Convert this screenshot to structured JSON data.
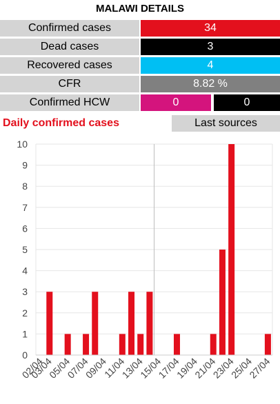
{
  "title": "MALAWI DETAILS",
  "stats": {
    "confirmed": {
      "label": "Confirmed cases",
      "value": "34"
    },
    "dead": {
      "label": "Dead cases",
      "value": "3"
    },
    "recovered": {
      "label": "Recovered cases",
      "value": "4"
    },
    "cfr": {
      "label": "CFR",
      "value": "8.82 %"
    },
    "hcw": {
      "label": "Confirmed HCW",
      "value1": "0",
      "value2": "0"
    }
  },
  "colors": {
    "confirmed": "#e3101d",
    "dead": "#000000",
    "recovered": "#00bff3",
    "cfr": "#808080",
    "hcw": "#d4147d",
    "bar": "#e3101d"
  },
  "daily_title": "Daily confirmed cases",
  "last_sources": "Last sources",
  "chart_data": {
    "type": "bar",
    "title": "Daily confirmed cases",
    "categories": [
      "02/04",
      "03/04",
      "04/04",
      "05/04",
      "06/04",
      "07/04",
      "08/04",
      "09/04",
      "10/04",
      "11/04",
      "12/04",
      "13/04",
      "14/04",
      "15/04",
      "16/04",
      "17/04",
      "18/04",
      "19/04",
      "20/04",
      "21/04",
      "22/04",
      "23/04",
      "24/04",
      "25/04",
      "26/04",
      "27/04"
    ],
    "tick_labels": [
      "02/04",
      "03/04",
      "05/04",
      "07/04",
      "09/04",
      "11/04",
      "13/04",
      "15/04",
      "17/04",
      "19/04",
      "21/04",
      "23/04",
      "25/04",
      "27/04"
    ],
    "values": [
      0,
      3,
      0,
      1,
      0,
      1,
      3,
      0,
      0,
      1,
      3,
      1,
      3,
      0,
      0,
      1,
      0,
      0,
      0,
      1,
      5,
      10,
      0,
      0,
      0,
      1
    ],
    "ylim": [
      0,
      10
    ],
    "yticks": [
      0,
      1,
      2,
      3,
      4,
      5,
      6,
      7,
      8,
      9,
      10
    ],
    "grid": true
  }
}
